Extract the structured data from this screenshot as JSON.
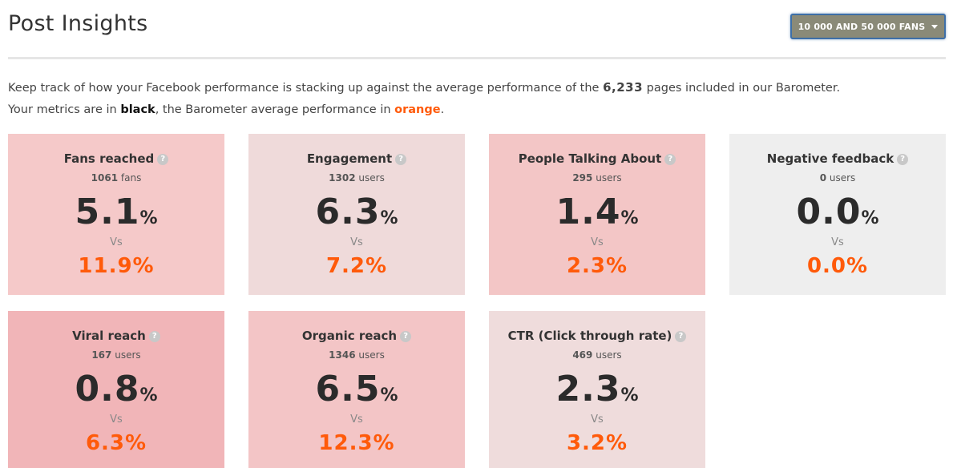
{
  "header": {
    "title": "Post Insights",
    "segment_label": "10 000 AND 50 000 FANS"
  },
  "intro": {
    "line1_prefix": "Keep track of how your Facebook performance is stacking up against the average performance of the",
    "page_count": "6,233",
    "line1_suffix": "pages included in our Barometer.",
    "line2_prefix": "Your metrics are in",
    "black_word": "black",
    "line2_middle": ", the Barometer average performance in",
    "orange_word": "orange",
    "line2_suffix": "."
  },
  "cards": [
    {
      "name": "Fans reached",
      "count": "1061",
      "unit": "fans",
      "value": "5.1",
      "pct": "%",
      "vs": "Vs",
      "benchmark": "11.9%",
      "bg": "#f5c9c9"
    },
    {
      "name": "Engagement",
      "count": "1302",
      "unit": "users",
      "value": "6.3",
      "pct": "%",
      "vs": "Vs",
      "benchmark": "7.2%",
      "bg": "#efdada"
    },
    {
      "name": "People Talking About",
      "count": "295",
      "unit": "users",
      "value": "1.4",
      "pct": "%",
      "vs": "Vs",
      "benchmark": "2.3%",
      "bg": "#f3c6c6"
    },
    {
      "name": "Negative feedback",
      "count": "0",
      "unit": "users",
      "value": "0.0",
      "pct": "%",
      "vs": "Vs",
      "benchmark": "0.0%",
      "bg": "#eeeeee"
    },
    {
      "name": "Viral reach",
      "count": "167",
      "unit": "users",
      "value": "0.8",
      "pct": "%",
      "vs": "Vs",
      "benchmark": "6.3%",
      "bg": "#f1b5b8"
    },
    {
      "name": "Organic reach",
      "count": "1346",
      "unit": "users",
      "value": "6.5",
      "pct": "%",
      "vs": "Vs",
      "benchmark": "12.3%",
      "bg": "#f3c5c6"
    },
    {
      "name": "CTR (Click through rate)",
      "count": "469",
      "unit": "users",
      "value": "2.3",
      "pct": "%",
      "vs": "Vs",
      "benchmark": "3.2%",
      "bg": "#efdcdc"
    }
  ],
  "help_glyph": "?"
}
